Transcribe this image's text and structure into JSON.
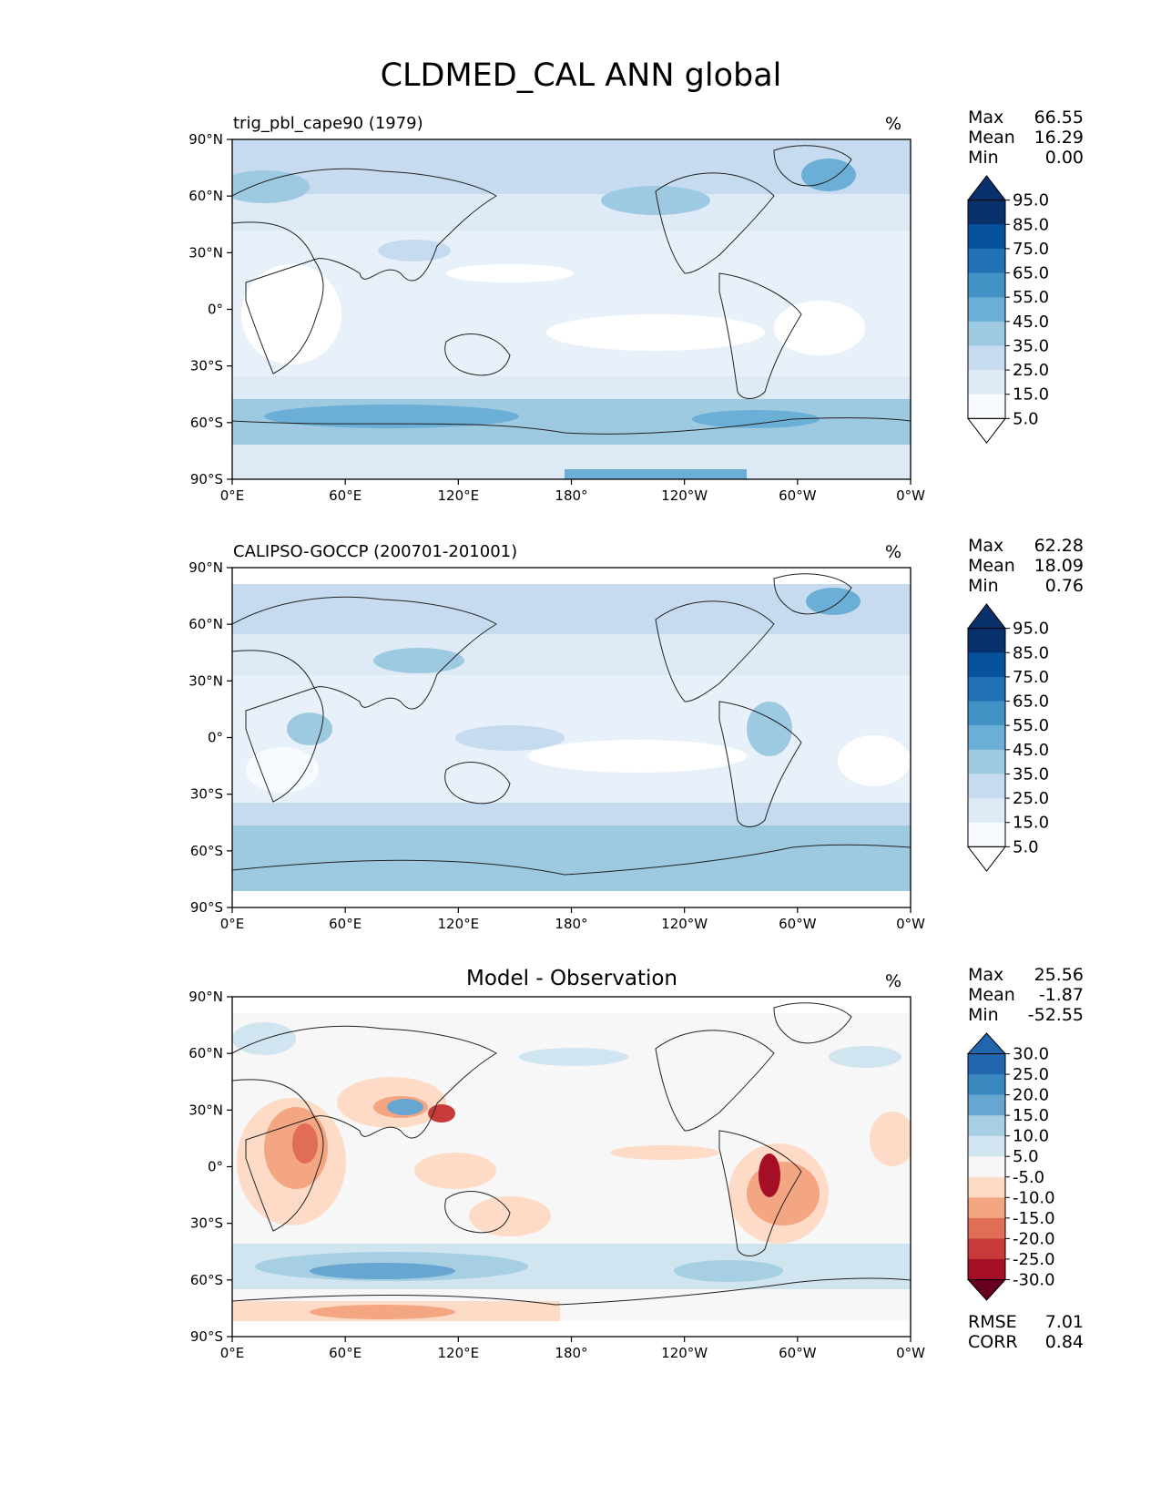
{
  "title": "CLDMED_CAL ANN global",
  "x_ticks": [
    "0°E",
    "60°E",
    "120°E",
    "180°",
    "120°W",
    "60°W",
    "0°W"
  ],
  "y_ticks": [
    "90°N",
    "60°N",
    "30°N",
    "0°",
    "30°S",
    "60°S",
    "90°S"
  ],
  "panels": [
    {
      "name": "model",
      "title_left": "trig_pbl_cape90 (1979)",
      "title_center": "",
      "units": "%",
      "stats": [
        {
          "label": "Max",
          "value": "66.55"
        },
        {
          "label": "Mean",
          "value": "16.29"
        },
        {
          "label": "Min",
          "value": "0.00"
        }
      ],
      "colorbar": {
        "labels": [
          "95.0",
          "85.0",
          "75.0",
          "65.0",
          "55.0",
          "45.0",
          "35.0",
          "25.0",
          "15.0",
          "5.0"
        ],
        "colors": [
          "#08306b",
          "#08519c",
          "#2171b5",
          "#4292c6",
          "#6baed6",
          "#9ecae1",
          "#c6dbef",
          "#deebf7",
          "#f7fbff"
        ]
      }
    },
    {
      "name": "obs",
      "title_left": "CALIPSO-GOCCP (200701-201001)",
      "title_center": "",
      "units": "%",
      "stats": [
        {
          "label": "Max",
          "value": "62.28"
        },
        {
          "label": "Mean",
          "value": "18.09"
        },
        {
          "label": "Min",
          "value": "0.76"
        }
      ],
      "colorbar": {
        "labels": [
          "95.0",
          "85.0",
          "75.0",
          "65.0",
          "55.0",
          "45.0",
          "35.0",
          "25.0",
          "15.0",
          "5.0"
        ],
        "colors": [
          "#08306b",
          "#08519c",
          "#2171b5",
          "#4292c6",
          "#6baed6",
          "#9ecae1",
          "#c6dbef",
          "#deebf7",
          "#f7fbff"
        ]
      }
    },
    {
      "name": "diff",
      "title_left": "",
      "title_center": "Model - Observation",
      "units": "%",
      "stats": [
        {
          "label": "Max",
          "value": "25.56"
        },
        {
          "label": "Mean",
          "value": "-1.87"
        },
        {
          "label": "Min",
          "value": "-52.55"
        }
      ],
      "bottom_stats": [
        {
          "label": "RMSE",
          "value": "7.01"
        },
        {
          "label": "CORR",
          "value": "0.84"
        }
      ],
      "colorbar": {
        "labels": [
          "30.0",
          "25.0",
          "20.0",
          "15.0",
          "10.0",
          "5.0",
          "-5.0",
          "-10.0",
          "-15.0",
          "-20.0",
          "-25.0",
          "-30.0"
        ],
        "colors": [
          "#2166ac",
          "#3a87bf",
          "#66a6d0",
          "#a7cfe4",
          "#d1e5f0",
          "#f7f7f7",
          "#fddbc7",
          "#f4a582",
          "#e06d55",
          "#c73b3b",
          "#a50f25"
        ]
      }
    }
  ]
}
